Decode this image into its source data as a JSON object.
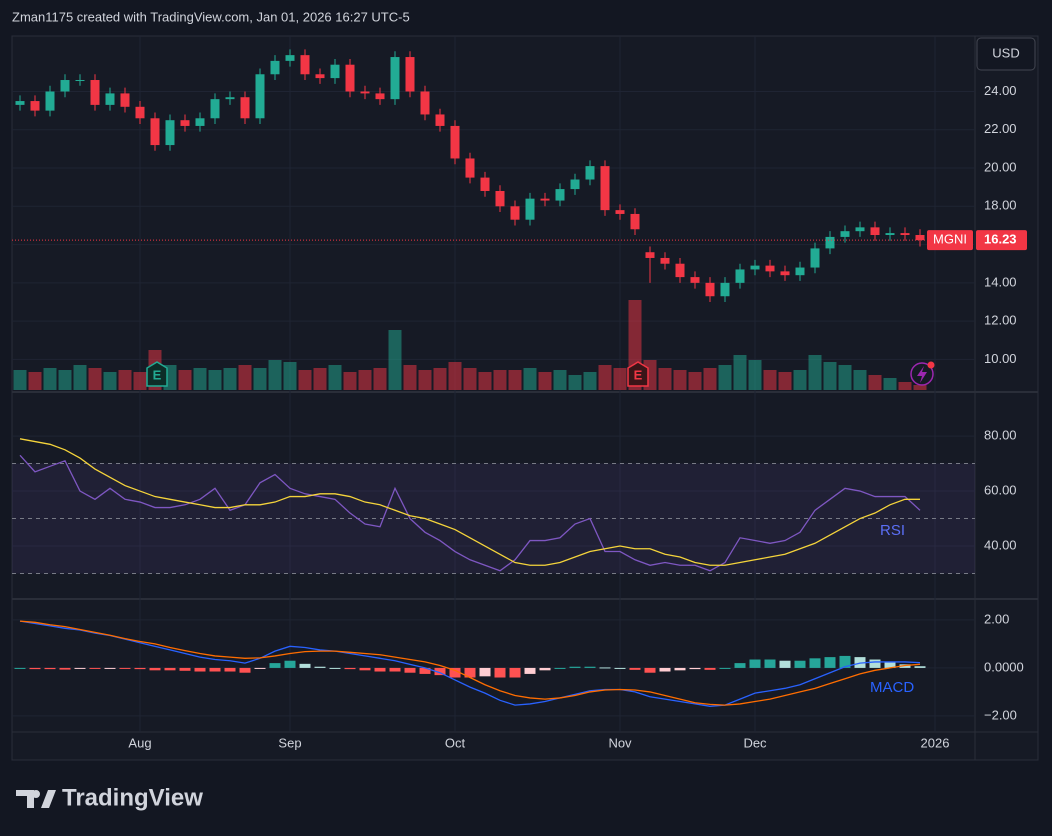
{
  "header": "Zman1175 created with TradingView.com, Jan 01, 2026 16:27 UTC-5",
  "currency": "USD",
  "logo": "TradingView",
  "earnings_markers": [
    "E",
    "E"
  ],
  "chart_data": [
    {
      "type": "candlestick",
      "up_color": "#22ab94",
      "down_color": "#f23645",
      "series": [
        {
          "name": "MGNI",
          "open": [
            23.3,
            23.5,
            23.0,
            24.0,
            24.6,
            24.6,
            23.3,
            23.9,
            23.2,
            22.6,
            21.2,
            22.5,
            22.2,
            22.6,
            23.6,
            23.7,
            22.6,
            24.9,
            25.6,
            25.9,
            24.9,
            24.7,
            25.4,
            24.0,
            23.9,
            23.6,
            25.8,
            24.0,
            22.8,
            22.2,
            20.5,
            19.5,
            18.8,
            18.0,
            17.3,
            18.4,
            18.3,
            18.9,
            19.4,
            20.1,
            17.8,
            17.6,
            15.6,
            15.3,
            15.0,
            14.3,
            14.0,
            13.3,
            14.0,
            14.7,
            14.9,
            14.6,
            14.4,
            14.8,
            15.8,
            16.4,
            16.7,
            16.9,
            16.5,
            16.6,
            16.5,
            null
          ],
          "high": [
            23.8,
            23.8,
            24.3,
            24.9,
            24.9,
            24.9,
            24.2,
            24.2,
            23.5,
            22.9,
            22.8,
            22.8,
            22.9,
            23.9,
            24.0,
            24.0,
            25.2,
            25.9,
            26.2,
            26.2,
            25.2,
            25.7,
            25.7,
            24.3,
            24.2,
            26.1,
            26.1,
            24.3,
            23.1,
            22.5,
            20.8,
            19.8,
            19.1,
            18.3,
            18.7,
            18.7,
            19.2,
            19.7,
            20.4,
            20.4,
            18.1,
            17.9,
            15.9,
            15.6,
            15.3,
            14.6,
            14.3,
            14.3,
            15.0,
            15.2,
            15.2,
            14.9,
            15.1,
            16.1,
            16.7,
            17.0,
            17.2,
            17.2,
            16.9,
            16.9,
            16.8,
            null
          ],
          "low": [
            23.0,
            22.7,
            22.7,
            23.7,
            24.3,
            23.0,
            23.0,
            22.9,
            22.3,
            20.9,
            20.9,
            21.9,
            21.9,
            22.3,
            23.3,
            22.3,
            22.3,
            24.6,
            25.3,
            24.6,
            24.4,
            24.4,
            23.7,
            23.6,
            23.3,
            23.3,
            23.7,
            22.5,
            21.9,
            20.2,
            19.2,
            18.5,
            17.7,
            17.0,
            17.0,
            18.0,
            18.0,
            18.6,
            19.1,
            17.5,
            17.3,
            16.5,
            14.0,
            14.7,
            14.0,
            13.7,
            13.0,
            13.0,
            13.7,
            14.4,
            14.3,
            14.1,
            14.1,
            14.5,
            15.5,
            16.1,
            16.4,
            16.2,
            16.2,
            16.2,
            15.9,
            null
          ],
          "close": [
            23.5,
            23.0,
            24.0,
            24.6,
            24.6,
            23.3,
            23.9,
            23.2,
            22.6,
            21.2,
            22.5,
            22.2,
            22.6,
            23.6,
            23.7,
            22.6,
            24.9,
            25.6,
            25.9,
            24.9,
            24.7,
            25.4,
            24.0,
            23.9,
            23.6,
            25.8,
            24.0,
            22.8,
            22.2,
            20.5,
            19.5,
            18.8,
            18.0,
            17.3,
            18.4,
            18.3,
            18.9,
            19.4,
            20.1,
            17.8,
            17.6,
            16.8,
            15.3,
            15.0,
            14.3,
            14.0,
            13.3,
            14.0,
            14.7,
            14.9,
            14.6,
            14.4,
            14.8,
            15.8,
            16.4,
            16.7,
            16.9,
            16.5,
            16.6,
            16.5,
            16.23,
            null
          ]
        }
      ],
      "volume": [
        20,
        18,
        22,
        20,
        25,
        22,
        18,
        20,
        18,
        40,
        25,
        20,
        22,
        20,
        22,
        25,
        22,
        30,
        28,
        20,
        22,
        25,
        18,
        20,
        22,
        60,
        25,
        20,
        22,
        28,
        22,
        18,
        20,
        20,
        22,
        18,
        20,
        15,
        18,
        25,
        22,
        90,
        30,
        22,
        20,
        18,
        22,
        25,
        35,
        30,
        20,
        18,
        20,
        35,
        28,
        25,
        20,
        15,
        12,
        8,
        5,
        null
      ],
      "ylim": [
        8.4,
        26.9
      ],
      "yticks": [
        {
          "value": 10,
          "label": "10.00"
        },
        {
          "value": 12,
          "label": "12.00"
        },
        {
          "value": 14,
          "label": "14.00"
        },
        {
          "value": 16,
          "label": "16.00"
        },
        {
          "value": 18,
          "label": "18.00"
        },
        {
          "value": 20,
          "label": "20.00"
        },
        {
          "value": 22,
          "label": "22.00"
        },
        {
          "value": 24,
          "label": "24.00"
        }
      ],
      "grid": true
    },
    {
      "type": "rsi",
      "title": "RSI",
      "band_color": "#7e57c2",
      "series": [
        {
          "name": "RSI",
          "color": "#7e57c2",
          "values": [
            73,
            67,
            69,
            71,
            60,
            57,
            61,
            57,
            56,
            54,
            54,
            55,
            57,
            61,
            53,
            55,
            63,
            66,
            61,
            59,
            58,
            57,
            52,
            48,
            47,
            61,
            50,
            45,
            42,
            38,
            35,
            33,
            31,
            35,
            42,
            42,
            43,
            48,
            50,
            38,
            38,
            35,
            33,
            34,
            33,
            33,
            31,
            34,
            43,
            42,
            41,
            42,
            45,
            53,
            57,
            61,
            60,
            58,
            58,
            58,
            53,
            null
          ]
        },
        {
          "color": "#f5d43b",
          "values": [
            79,
            78,
            77,
            75,
            72,
            68,
            65,
            62,
            60,
            58,
            57,
            56,
            55,
            54,
            54,
            55,
            55,
            56,
            58,
            58,
            59,
            59,
            58,
            56,
            55,
            53,
            51,
            50,
            48,
            46,
            43,
            40,
            37,
            34,
            33,
            33,
            34,
            36,
            38,
            39,
            40,
            39,
            39,
            37,
            36,
            34,
            33,
            33,
            34,
            35,
            36,
            37,
            39,
            41,
            44,
            47,
            50,
            52,
            55,
            57,
            57,
            null
          ]
        }
      ],
      "bands": [
        30,
        50,
        70
      ],
      "ylim": [
        21.1,
        95.3
      ],
      "yticks": [
        {
          "value": 40,
          "label": "40.00"
        },
        {
          "value": 60,
          "label": "60.00"
        },
        {
          "value": 80,
          "label": "80.00"
        }
      ],
      "grid": true
    },
    {
      "type": "macd",
      "title": "MACD",
      "categories": [
        null,
        null,
        null,
        null,
        null,
        null,
        null,
        null,
        "Aug",
        null,
        null,
        null,
        null,
        null,
        null,
        null,
        null,
        null,
        "Sep",
        null,
        null,
        null,
        null,
        null,
        null,
        null,
        null,
        null,
        null,
        "Oct",
        null,
        null,
        null,
        null,
        null,
        null,
        null,
        null,
        null,
        null,
        "Nov",
        null,
        null,
        null,
        null,
        null,
        null,
        null,
        null,
        "Dec",
        null,
        null,
        null,
        null,
        null,
        null,
        null,
        null,
        null,
        null,
        null,
        "2026"
      ],
      "histogram": [
        0,
        -0.05,
        -0.05,
        -0.07,
        -0.02,
        -0.03,
        -0.01,
        -0.02,
        -0.05,
        -0.1,
        -0.1,
        -0.12,
        -0.15,
        -0.15,
        -0.15,
        -0.2,
        -0.02,
        0.2,
        0.3,
        0.17,
        0.05,
        0,
        -0.05,
        -0.1,
        -0.15,
        -0.15,
        -0.2,
        -0.25,
        -0.3,
        -0.4,
        -0.4,
        -0.35,
        -0.4,
        -0.4,
        -0.25,
        -0.1,
        0,
        0.05,
        0.05,
        0.02,
        0,
        -0.08,
        -0.2,
        -0.15,
        -0.1,
        -0.05,
        -0.08,
        0,
        0.2,
        0.35,
        0.35,
        0.3,
        0.3,
        0.4,
        0.45,
        0.5,
        0.45,
        0.35,
        0.25,
        0.15,
        0.07,
        null
      ],
      "series": [
        {
          "name": "MACD",
          "color": "#2962ff",
          "values": [
            1.95,
            1.85,
            1.75,
            1.65,
            1.58,
            1.45,
            1.35,
            1.2,
            1.05,
            0.9,
            0.75,
            0.6,
            0.45,
            0.35,
            0.3,
            0.2,
            0.4,
            0.7,
            0.9,
            0.85,
            0.75,
            0.7,
            0.6,
            0.5,
            0.4,
            0.3,
            0.15,
            0.0,
            -0.2,
            -0.5,
            -0.8,
            -1.05,
            -1.35,
            -1.55,
            -1.5,
            -1.4,
            -1.25,
            -1.1,
            -0.95,
            -0.9,
            -0.9,
            -1.0,
            -1.2,
            -1.3,
            -1.4,
            -1.5,
            -1.6,
            -1.55,
            -1.3,
            -1.05,
            -0.95,
            -0.85,
            -0.7,
            -0.45,
            -0.2,
            0.05,
            0.2,
            0.25,
            0.25,
            0.25,
            0.22,
            null
          ]
        },
        {
          "color": "#ff6d00",
          "values": [
            1.95,
            1.9,
            1.8,
            1.72,
            1.6,
            1.48,
            1.36,
            1.22,
            1.1,
            1.0,
            0.85,
            0.72,
            0.6,
            0.5,
            0.45,
            0.4,
            0.42,
            0.5,
            0.6,
            0.68,
            0.7,
            0.7,
            0.65,
            0.6,
            0.55,
            0.45,
            0.35,
            0.25,
            0.1,
            -0.1,
            -0.4,
            -0.7,
            -0.95,
            -1.15,
            -1.25,
            -1.3,
            -1.25,
            -1.15,
            -1.0,
            -0.92,
            -0.9,
            -0.92,
            -1.0,
            -1.15,
            -1.3,
            -1.45,
            -1.52,
            -1.55,
            -1.5,
            -1.4,
            -1.3,
            -1.15,
            -1.0,
            -0.85,
            -0.65,
            -0.45,
            -0.25,
            -0.1,
            0.0,
            0.1,
            0.15,
            null
          ]
        }
      ],
      "ylim": [
        -2.67,
        2.83
      ],
      "yticks": [
        {
          "value": -2,
          "label": "−2.00"
        },
        {
          "value": 0,
          "label": "0.0000"
        },
        {
          "value": 2,
          "label": "2.00"
        }
      ],
      "grid": true
    }
  ]
}
